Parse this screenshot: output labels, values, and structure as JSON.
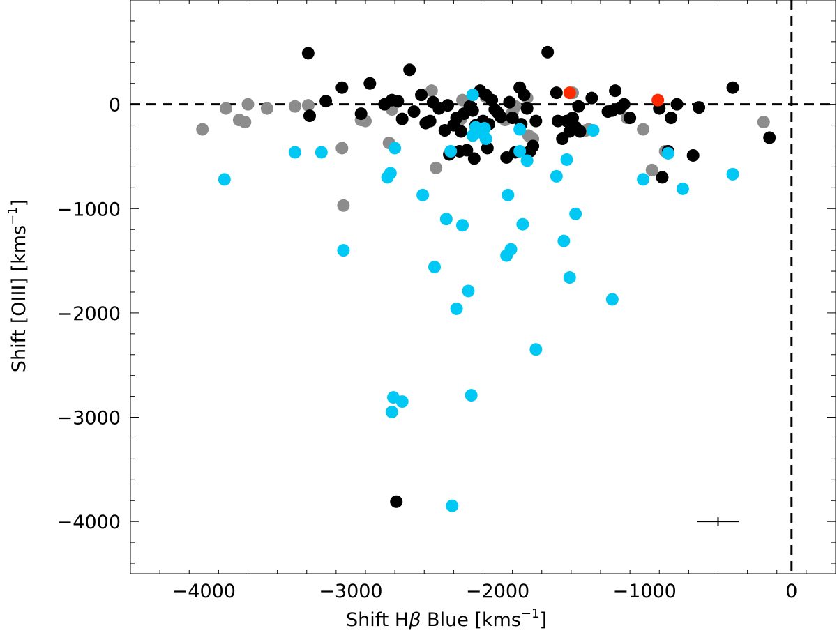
{
  "chart_data": {
    "type": "scatter",
    "xlabel": "Shift Hβ Blue [kms⁻¹]",
    "ylabel": "Shift [OIII] [kms⁻¹]",
    "xlabel_parts": [
      "Shift H",
      "β",
      " Blue [kms",
      "−1",
      "]"
    ],
    "ylabel_parts": [
      "Shift [OIII] [kms",
      "−1",
      "]"
    ],
    "xlim": [
      -4500,
      300
    ],
    "ylim": [
      -4500,
      1000
    ],
    "x_ticks": [
      -4000,
      -3000,
      -2000,
      -1000,
      0
    ],
    "x_tick_labels": [
      "−4000",
      "−3000",
      "−2000",
      "−1000",
      "0"
    ],
    "y_ticks": [
      -4000,
      -3000,
      -2000,
      -1000,
      0
    ],
    "y_tick_labels": [
      "−4000",
      "−3000",
      "−2000",
      "−1000",
      "0"
    ],
    "reference_lines": [
      {
        "orientation": "horizontal",
        "value": 0,
        "style": "dashed"
      },
      {
        "orientation": "vertical",
        "value": 0,
        "style": "dashed"
      }
    ],
    "error_bar": {
      "x": -500,
      "y": -4000,
      "x_err": 140,
      "y_err": 40
    },
    "colors": {
      "black": "#000000",
      "gray": "#8c8c8c",
      "cyan": "#00c8f5",
      "red": "#ff2a00"
    },
    "series": [
      {
        "color": "#8c8c8c",
        "points": [
          [
            -4010,
            -240
          ],
          [
            -3850,
            -40
          ],
          [
            -3760,
            -150
          ],
          [
            -3720,
            -170
          ],
          [
            -3700,
            0
          ],
          [
            -3570,
            -40
          ],
          [
            -3380,
            -20
          ],
          [
            -3290,
            -10
          ],
          [
            -3060,
            -420
          ],
          [
            -3050,
            -970
          ],
          [
            -2930,
            -150
          ],
          [
            -2900,
            -160
          ],
          [
            -2740,
            -370
          ],
          [
            -2720,
            -50
          ],
          [
            -2690,
            20
          ],
          [
            -2450,
            130
          ],
          [
            -2420,
            -610
          ],
          [
            -2250,
            -140
          ],
          [
            -2240,
            40
          ],
          [
            -2080,
            70
          ],
          [
            -1950,
            -150
          ],
          [
            -1900,
            -80
          ],
          [
            -1880,
            -20
          ],
          [
            -1800,
            60
          ],
          [
            -1790,
            -300
          ],
          [
            -1760,
            -330
          ],
          [
            -1490,
            110
          ],
          [
            -1400,
            -250
          ],
          [
            -1380,
            -240
          ],
          [
            -1120,
            -130
          ],
          [
            -1010,
            -240
          ],
          [
            -950,
            -630
          ],
          [
            -860,
            -450
          ],
          [
            -190,
            -170
          ]
        ]
      },
      {
        "color": "#000000",
        "points": [
          [
            -3290,
            490
          ],
          [
            -3280,
            -110
          ],
          [
            -3170,
            30
          ],
          [
            -3060,
            160
          ],
          [
            -2930,
            -90
          ],
          [
            -2870,
            200
          ],
          [
            -2770,
            0
          ],
          [
            -2720,
            40
          ],
          [
            -2680,
            30
          ],
          [
            -2650,
            -140
          ],
          [
            -2600,
            330
          ],
          [
            -2570,
            -70
          ],
          [
            -2520,
            90
          ],
          [
            -2490,
            -180
          ],
          [
            -2460,
            -160
          ],
          [
            -2440,
            20
          ],
          [
            -2400,
            -40
          ],
          [
            -2360,
            -250
          ],
          [
            -2340,
            -10
          ],
          [
            -2330,
            -480
          ],
          [
            -2300,
            -200
          ],
          [
            -2280,
            -130
          ],
          [
            -2260,
            -450
          ],
          [
            -2250,
            -260
          ],
          [
            -2230,
            -90
          ],
          [
            -2210,
            -440
          ],
          [
            -2190,
            -20
          ],
          [
            -2170,
            -60
          ],
          [
            -2160,
            -520
          ],
          [
            -2150,
            -200
          ],
          [
            -2120,
            130
          ],
          [
            -2100,
            -160
          ],
          [
            -2080,
            90
          ],
          [
            -2070,
            -420
          ],
          [
            -2060,
            -190
          ],
          [
            -2040,
            40
          ],
          [
            -2020,
            -50
          ],
          [
            -2000,
            -80
          ],
          [
            -1980,
            -120
          ],
          [
            -1940,
            -510
          ],
          [
            -1920,
            20
          ],
          [
            -1900,
            -130
          ],
          [
            -1880,
            -460
          ],
          [
            -1850,
            160
          ],
          [
            -1840,
            -190
          ],
          [
            -1820,
            90
          ],
          [
            -1800,
            -40
          ],
          [
            -1780,
            -450
          ],
          [
            -1760,
            -400
          ],
          [
            -1740,
            -160
          ],
          [
            -1660,
            500
          ],
          [
            -1600,
            110
          ],
          [
            -1590,
            -160
          ],
          [
            -1560,
            -330
          ],
          [
            -1530,
            -160
          ],
          [
            -1510,
            -260
          ],
          [
            -1490,
            -130
          ],
          [
            -1470,
            -220
          ],
          [
            -1450,
            -20
          ],
          [
            -1440,
            -260
          ],
          [
            -1360,
            60
          ],
          [
            -1250,
            -70
          ],
          [
            -1220,
            -60
          ],
          [
            -1200,
            130
          ],
          [
            -1170,
            -40
          ],
          [
            -1140,
            0
          ],
          [
            -1100,
            -130
          ],
          [
            -900,
            -40
          ],
          [
            -880,
            -700
          ],
          [
            -840,
            -450
          ],
          [
            -820,
            -130
          ],
          [
            -780,
            0
          ],
          [
            -670,
            -490
          ],
          [
            -630,
            -30
          ],
          [
            -400,
            160
          ],
          [
            -150,
            -320
          ],
          [
            -2690,
            -3810
          ]
        ]
      },
      {
        "color": "#00c8f5",
        "points": [
          [
            -3860,
            -720
          ],
          [
            -3380,
            -460
          ],
          [
            -3200,
            -460
          ],
          [
            -3050,
            -1400
          ],
          [
            -2750,
            -700
          ],
          [
            -2730,
            -660
          ],
          [
            -2700,
            -420
          ],
          [
            -2710,
            -2810
          ],
          [
            -2720,
            -2950
          ],
          [
            -2650,
            -2850
          ],
          [
            -2510,
            -870
          ],
          [
            -2430,
            -1560
          ],
          [
            -2350,
            -1100
          ],
          [
            -2320,
            -450
          ],
          [
            -2280,
            -1960
          ],
          [
            -2240,
            -1160
          ],
          [
            -2200,
            -1790
          ],
          [
            -2170,
            90
          ],
          [
            -2170,
            -300
          ],
          [
            -2150,
            -220
          ],
          [
            -2100,
            -280
          ],
          [
            -2090,
            -230
          ],
          [
            -2080,
            -330
          ],
          [
            -2180,
            -2790
          ],
          [
            -1940,
            -1450
          ],
          [
            -1930,
            -870
          ],
          [
            -1910,
            -1390
          ],
          [
            -1850,
            -240
          ],
          [
            -1850,
            -450
          ],
          [
            -1830,
            -1150
          ],
          [
            -1800,
            -540
          ],
          [
            -1740,
            -2350
          ],
          [
            -1600,
            -690
          ],
          [
            -1550,
            -1310
          ],
          [
            -1530,
            -530
          ],
          [
            -1510,
            -1660
          ],
          [
            -1470,
            -1050
          ],
          [
            -1350,
            -250
          ],
          [
            -1220,
            -1870
          ],
          [
            -1010,
            -720
          ],
          [
            -840,
            -470
          ],
          [
            -740,
            -810
          ],
          [
            -400,
            -670
          ],
          [
            -2310,
            -3850
          ]
        ]
      },
      {
        "color": "#ff2a00",
        "points": [
          [
            -1510,
            110
          ],
          [
            -910,
            40
          ]
        ]
      }
    ]
  }
}
